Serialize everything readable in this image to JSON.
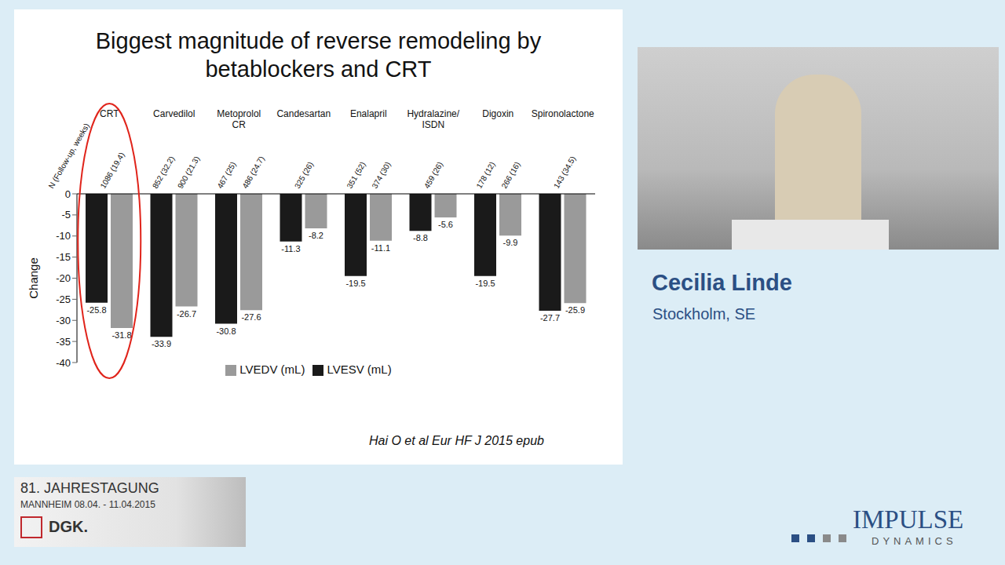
{
  "chart_data": {
    "type": "bar",
    "title": "Biggest magnitude of reverse remodeling by betablockers and CRT",
    "y_label": "Change",
    "categories": [
      "CRT",
      "Carvedilol",
      "Metoprolol CR",
      "Candesartan",
      "Enalapril",
      "Hydralazine/ ISDN",
      "Digoxin",
      "Spironolactone"
    ],
    "series": [
      {
        "name": "LVESV (mL)",
        "color": "#1a1a1a",
        "values": [
          -25.8,
          -33.9,
          -30.8,
          -11.3,
          -19.5,
          -8.8,
          -19.5,
          -27.7
        ]
      },
      {
        "name": "LVEDV (mL)",
        "color": "#9a9a9a",
        "values": [
          -31.8,
          -26.7,
          -27.6,
          -8.2,
          -11.1,
          -5.6,
          -9.9,
          -25.9
        ]
      }
    ],
    "n_header": "N (Follow-up, weeks)",
    "n_labels": [
      [
        "1086 (19.4)"
      ],
      [
        "852 (32.2)",
        "900 (21.3)"
      ],
      [
        "467 (25)",
        "486 (24.7)"
      ],
      [
        "325 (26)"
      ],
      [
        "351 (52)",
        "374 (30)"
      ],
      [
        "459 (26)"
      ],
      [
        "178 (12)",
        "266 (16)"
      ],
      [
        "143 (34.5)"
      ]
    ],
    "ylim": [
      -40,
      0
    ],
    "yticks": [
      0,
      -5,
      -10,
      -15,
      -20,
      -25,
      -30,
      -35,
      -40
    ],
    "grid": false,
    "legend": "bottom",
    "data_labels": true,
    "source": "Hai O et al Eur HF J 2015 epub"
  },
  "speaker": {
    "name": "Cecilia Linde",
    "location": "Stockholm, SE"
  },
  "conference": {
    "title": "81. JAHRESTAGUNG",
    "place_dates": "MANNHEIM 08.04. - 11.04.2015",
    "society": "DGK."
  },
  "sponsor": {
    "name": "IMPULSE",
    "subtitle": "DYNAMICS"
  }
}
